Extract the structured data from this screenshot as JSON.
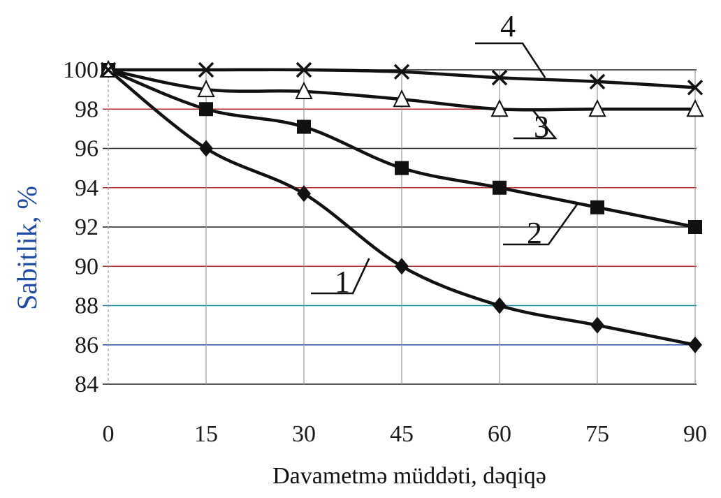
{
  "chart_data": {
    "type": "line",
    "title": "",
    "xlabel": "Davametmə müddəti, dəqiqə",
    "ylabel": "Sabitlik, %",
    "xlim": [
      0,
      90
    ],
    "ylim": [
      84,
      100
    ],
    "x_ticks": [
      "0",
      "15",
      "30",
      "45",
      "60",
      "75",
      "90"
    ],
    "y_ticks": [
      "84",
      "86",
      "88",
      "90",
      "92",
      "94",
      "96",
      "98",
      "100"
    ],
    "grid": true,
    "gridline_colors": [
      "#222222",
      "#1f4aa3",
      "#1a8a99",
      "#b02a2a",
      "#222222",
      "#b02a2a",
      "#222222",
      "#b02a2a",
      "#222222"
    ],
    "x": [
      0,
      15,
      30,
      45,
      60,
      75,
      90
    ],
    "series": [
      {
        "label": "1",
        "marker": "diamond",
        "values": [
          100,
          96,
          93.7,
          90,
          88,
          87,
          86
        ]
      },
      {
        "label": "2",
        "marker": "square",
        "values": [
          100,
          98,
          97.1,
          95,
          94,
          93,
          92
        ]
      },
      {
        "label": "3",
        "marker": "triangle",
        "values": [
          100,
          99,
          98.9,
          98.5,
          98,
          98,
          98
        ]
      },
      {
        "label": "4",
        "marker": "x",
        "values": [
          100,
          100,
          100,
          99.9,
          99.6,
          99.4,
          99.1
        ]
      }
    ]
  }
}
